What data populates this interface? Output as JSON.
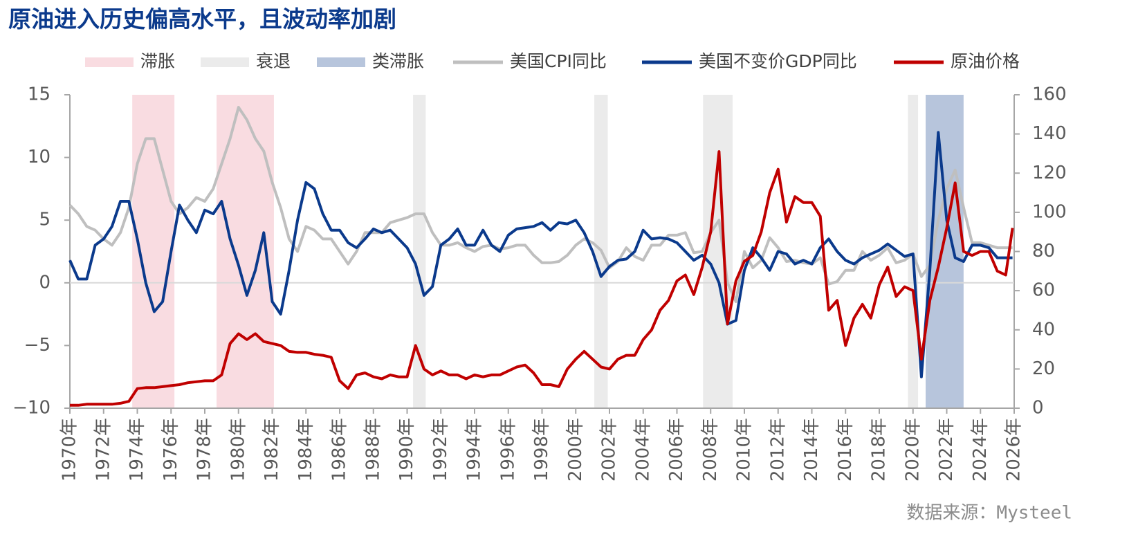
{
  "chart_data": {
    "type": "line",
    "title": "原油进入历史偏高水平，且波动率加剧",
    "source": "数据来源：Mysteel",
    "x": [
      1970,
      1970.5,
      1971,
      1971.5,
      1972,
      1972.5,
      1973,
      1973.5,
      1974,
      1974.5,
      1975,
      1975.5,
      1976,
      1976.5,
      1977,
      1977.5,
      1978,
      1978.5,
      1979,
      1979.5,
      1980,
      1980.5,
      1981,
      1981.5,
      1982,
      1982.5,
      1983,
      1983.5,
      1984,
      1984.5,
      1985,
      1985.5,
      1986,
      1986.5,
      1987,
      1987.5,
      1988,
      1988.5,
      1989,
      1989.5,
      1990,
      1990.5,
      1991,
      1991.5,
      1992,
      1992.5,
      1993,
      1993.5,
      1994,
      1994.5,
      1995,
      1995.5,
      1996,
      1996.5,
      1997,
      1997.5,
      1998,
      1998.5,
      1999,
      1999.5,
      2000,
      2000.5,
      2001,
      2001.5,
      2002,
      2002.5,
      2003,
      2003.5,
      2004,
      2004.5,
      2005,
      2005.5,
      2006,
      2006.5,
      2007,
      2007.5,
      2008,
      2008.5,
      2009,
      2009.5,
      2010,
      2010.5,
      2011,
      2011.5,
      2012,
      2012.5,
      2013,
      2013.5,
      2014,
      2014.5,
      2015,
      2015.5,
      2016,
      2016.5,
      2017,
      2017.5,
      2018,
      2018.5,
      2019,
      2019.5,
      2020,
      2020.5,
      2021,
      2021.5,
      2022,
      2022.5,
      2023,
      2023.5,
      2024,
      2024.5,
      2025,
      2025.5,
      2025.9
    ],
    "series": [
      {
        "name": "美国CPI同比",
        "color": "#bfbfbf",
        "axis": "y",
        "values": [
          6.2,
          5.5,
          4.5,
          4.2,
          3.5,
          3.0,
          4.0,
          6.0,
          9.5,
          11.5,
          11.5,
          9.0,
          6.5,
          5.5,
          6.0,
          6.8,
          6.5,
          7.5,
          9.5,
          11.5,
          14.0,
          13.0,
          11.5,
          10.5,
          8.0,
          6.0,
          3.5,
          2.5,
          4.5,
          4.2,
          3.5,
          3.5,
          2.5,
          1.5,
          2.5,
          4.0,
          4.0,
          4.0,
          4.8,
          5.0,
          5.2,
          5.5,
          5.5,
          4.0,
          3.0,
          3.0,
          3.2,
          2.8,
          2.5,
          2.9,
          3.0,
          2.7,
          2.8,
          3.0,
          3.0,
          2.2,
          1.6,
          1.6,
          1.7,
          2.2,
          3.0,
          3.5,
          3.2,
          2.6,
          1.2,
          1.7,
          2.8,
          2.1,
          1.8,
          3.0,
          3.0,
          3.8,
          3.8,
          4.0,
          2.4,
          2.5,
          4.0,
          5.0,
          0.0,
          -1.5,
          2.5,
          1.2,
          1.8,
          3.6,
          2.8,
          1.7,
          1.8,
          1.6,
          1.5,
          2.0,
          -0.1,
          0.1,
          1.0,
          1.0,
          2.5,
          1.8,
          2.2,
          2.8,
          1.6,
          1.8,
          2.3,
          0.5,
          1.4,
          5.0,
          7.5,
          9.0,
          6.0,
          3.2,
          3.2,
          3.0,
          2.8,
          2.8,
          2.8
        ]
      },
      {
        "name": "美国不变价GDP同比",
        "color": "#0b3a8c",
        "axis": "y",
        "values": [
          1.8,
          0.3,
          0.3,
          3.0,
          3.5,
          4.5,
          6.5,
          6.5,
          3.5,
          0.0,
          -2.3,
          -1.5,
          2.5,
          6.2,
          5.0,
          4.0,
          5.8,
          5.5,
          6.5,
          3.5,
          1.4,
          -1.0,
          1.0,
          4.0,
          -1.5,
          -2.5,
          1.0,
          5.0,
          8.0,
          7.5,
          5.5,
          4.2,
          4.2,
          3.2,
          2.8,
          3.5,
          4.3,
          4.0,
          4.2,
          3.5,
          2.8,
          1.5,
          -1.0,
          -0.3,
          3.0,
          3.5,
          4.3,
          3.0,
          3.0,
          4.2,
          3.0,
          2.5,
          3.8,
          4.3,
          4.4,
          4.5,
          4.8,
          4.2,
          4.8,
          4.7,
          5.0,
          4.0,
          2.5,
          0.5,
          1.3,
          1.8,
          1.9,
          2.5,
          4.2,
          3.5,
          3.6,
          3.5,
          3.2,
          2.5,
          1.8,
          2.2,
          1.5,
          0.0,
          -3.3,
          -3.0,
          1.0,
          2.8,
          2.0,
          1.0,
          2.5,
          2.3,
          1.5,
          1.8,
          1.5,
          2.8,
          3.5,
          2.5,
          1.8,
          1.5,
          2.0,
          2.3,
          2.6,
          3.1,
          2.6,
          2.1,
          2.3,
          -7.5,
          1.0,
          12.0,
          5.0,
          2.0,
          1.7,
          3.0,
          3.0,
          2.8,
          2.0,
          2.0,
          2.0
        ]
      },
      {
        "name": "原油价格",
        "color": "#c00000",
        "axis": "y2",
        "values": [
          1.5,
          1.5,
          2,
          2,
          2,
          2,
          2.5,
          3.5,
          10,
          10.5,
          10.5,
          11,
          11.5,
          12,
          13,
          13.5,
          14,
          14,
          17,
          33,
          38,
          35,
          38,
          34,
          33,
          32,
          29,
          28.5,
          28.5,
          27.5,
          27,
          26,
          14,
          10,
          17,
          18,
          16,
          15,
          17,
          16,
          16,
          32,
          20,
          17,
          19,
          17,
          17,
          15,
          17,
          16,
          17,
          17,
          19,
          21,
          22,
          18,
          12,
          12,
          11,
          20,
          25,
          29,
          25,
          21,
          20,
          25,
          27,
          27,
          35,
          40,
          50,
          55,
          65,
          68,
          58,
          72,
          90,
          131,
          43,
          65,
          75,
          78,
          90,
          110,
          122,
          95,
          108,
          105,
          105,
          98,
          50,
          55,
          32,
          46,
          53,
          46,
          63,
          72,
          57,
          62,
          60,
          25,
          55,
          72,
          92,
          115,
          80,
          78,
          80,
          80,
          70,
          68,
          92
        ]
      }
    ],
    "bands": [
      {
        "name": "滞胀",
        "color": "#f9dce1",
        "ranges": [
          [
            1973.7,
            1976.2
          ],
          [
            1978.7,
            1982.1
          ]
        ]
      },
      {
        "name": "衰退",
        "color": "#ebebeb",
        "ranges": [
          [
            1990.35,
            1991.1
          ],
          [
            2001.1,
            2001.9
          ],
          [
            2007.55,
            2009.3
          ],
          [
            2019.7,
            2020.3
          ]
        ]
      },
      {
        "name": "类滞胀",
        "color": "#b7c5dc",
        "ranges": [
          [
            2020.75,
            2023.0
          ]
        ]
      }
    ],
    "xlim": [
      1970,
      2026
    ],
    "xticks": [
      {
        "value": 1970,
        "label": "1970年"
      },
      {
        "value": 1972,
        "label": "1972年"
      },
      {
        "value": 1974,
        "label": "1974年"
      },
      {
        "value": 1976,
        "label": "1976年"
      },
      {
        "value": 1978,
        "label": "1978年"
      },
      {
        "value": 1980,
        "label": "1980年"
      },
      {
        "value": 1982,
        "label": "1982年"
      },
      {
        "value": 1984,
        "label": "1984年"
      },
      {
        "value": 1986,
        "label": "1986年"
      },
      {
        "value": 1988,
        "label": "1988年"
      },
      {
        "value": 1990,
        "label": "1990年"
      },
      {
        "value": 1992,
        "label": "1992年"
      },
      {
        "value": 1994,
        "label": "1994年"
      },
      {
        "value": 1996,
        "label": "1996年"
      },
      {
        "value": 1998,
        "label": "1998年"
      },
      {
        "value": 2000,
        "label": "2000年"
      },
      {
        "value": 2002,
        "label": "2002年"
      },
      {
        "value": 2004,
        "label": "2004年"
      },
      {
        "value": 2006,
        "label": "2006年"
      },
      {
        "value": 2008,
        "label": "2008年"
      },
      {
        "value": 2010,
        "label": "2010年"
      },
      {
        "value": 2012,
        "label": "2012年"
      },
      {
        "value": 2014,
        "label": "2014年"
      },
      {
        "value": 2016,
        "label": "2016年"
      },
      {
        "value": 2018,
        "label": "2018年"
      },
      {
        "value": 2020,
        "label": "2020年"
      },
      {
        "value": 2022,
        "label": "2022年"
      },
      {
        "value": 2024,
        "label": "2024年"
      },
      {
        "value": 2026,
        "label": "2026年"
      }
    ],
    "ylim": [
      -10,
      15
    ],
    "yticks": [
      15,
      10,
      5,
      0,
      {
        "value": -5,
        "label": "−5"
      },
      {
        "value": -10,
        "label": "−10"
      }
    ],
    "y2lim": [
      0,
      160
    ],
    "y2ticks": [
      0,
      20,
      40,
      60,
      80,
      100,
      120,
      140,
      160
    ],
    "zero_line": true
  }
}
